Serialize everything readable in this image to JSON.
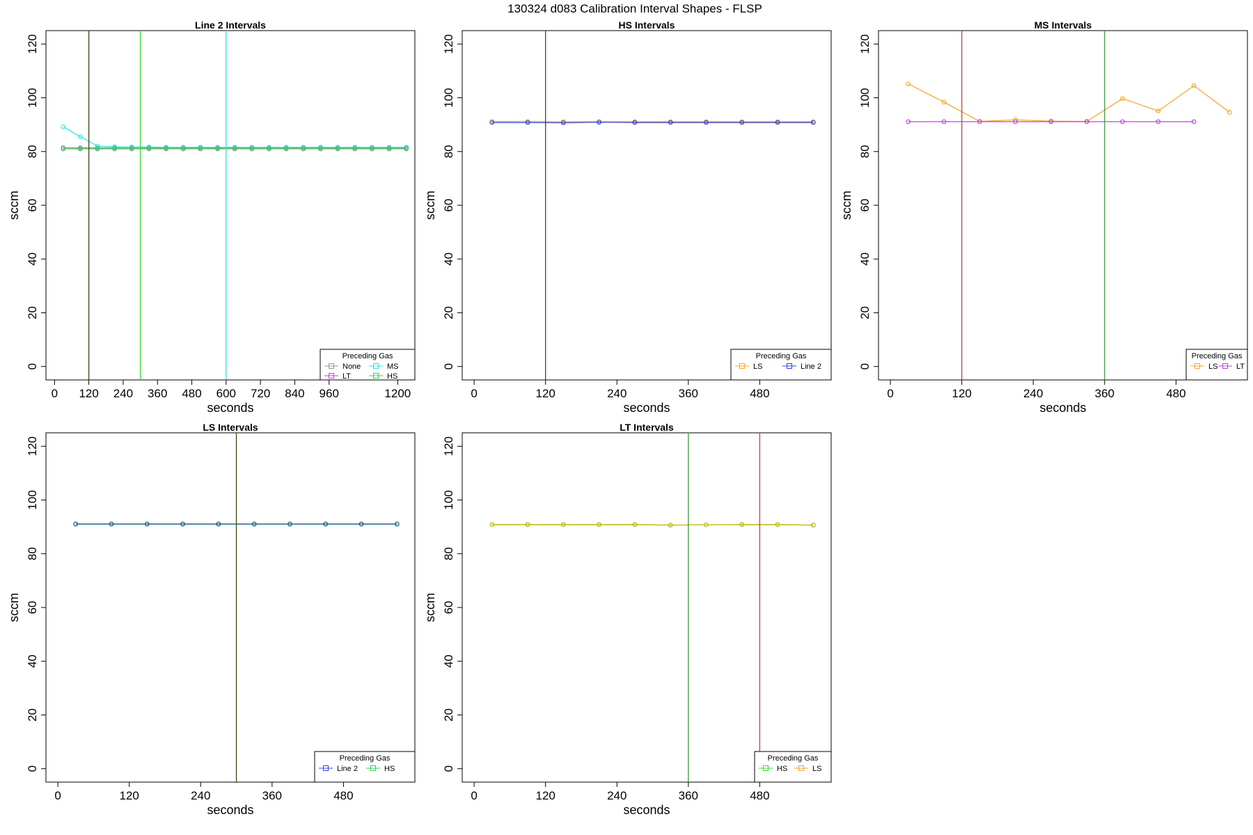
{
  "figure": {
    "title": "130324   d083   Calibration Interval Shapes - FLSP"
  },
  "chart_data": [
    {
      "type": "line",
      "title": "Line 2 Intervals",
      "xlabel": "seconds",
      "ylabel": "sccm",
      "xlim": [
        -30,
        1260
      ],
      "ylim": [
        -5,
        125
      ],
      "xticks": [
        0,
        120,
        240,
        360,
        480,
        600,
        720,
        840,
        960,
        1200
      ],
      "yticks": [
        0,
        20,
        40,
        60,
        80,
        100,
        120
      ],
      "vlines": [
        {
          "x": 120,
          "color": "#3b4a10"
        },
        {
          "x": 300,
          "color": "#33dd33"
        },
        {
          "x": 600,
          "color": "#33e0e0"
        }
      ],
      "legend": {
        "title": "Preceding Gas",
        "columns": 2,
        "entries": [
          {
            "label": "None",
            "color": "#999999"
          },
          {
            "label": "MS",
            "color": "#33e0e0"
          },
          {
            "label": "LT",
            "color": "#bb44dd"
          },
          {
            "label": "HS",
            "color": "#33cc55"
          }
        ]
      },
      "series": [
        {
          "name": "None",
          "color": "#999999",
          "x": [
            30,
            90,
            150,
            210,
            270,
            330,
            390,
            450,
            510,
            570,
            630,
            690,
            750,
            810,
            870,
            930,
            990,
            1050,
            1110,
            1170,
            1230
          ],
          "y": [
            81.5,
            81.4,
            81.4,
            81.4,
            81.4,
            81.4,
            81.4,
            81.4,
            81.4,
            81.4,
            81.4,
            81.4,
            81.4,
            81.4,
            81.4,
            81.4,
            81.4,
            81.4,
            81.4,
            81.4,
            81.4
          ]
        },
        {
          "name": "MS",
          "color": "#33e0e0",
          "x": [
            30,
            90,
            150,
            210,
            270,
            330,
            390,
            450,
            510,
            570,
            630,
            690,
            750,
            810,
            870,
            930,
            990,
            1050,
            1110,
            1170,
            1230
          ],
          "y": [
            89.2,
            85.5,
            82,
            81.8,
            81.7,
            81.7,
            81.6,
            81.6,
            81.6,
            81.6,
            81.6,
            81.6,
            81.6,
            81.6,
            81.6,
            81.6,
            81.6,
            81.6,
            81.6,
            81.6,
            81.6
          ]
        },
        {
          "name": "LT",
          "color": "#bb44dd",
          "x": [
            30,
            90,
            150,
            210,
            270,
            330,
            390,
            450,
            510,
            570,
            630,
            690,
            750,
            810,
            870,
            930,
            990,
            1050,
            1110,
            1170,
            1230
          ],
          "y": [
            81,
            81,
            81,
            81,
            81,
            81,
            81,
            81,
            81,
            81,
            81,
            81,
            81,
            81,
            81,
            81,
            81,
            81,
            81,
            81,
            81
          ]
        },
        {
          "name": "HS",
          "color": "#33cc55",
          "x": [
            30,
            90,
            150,
            210,
            270,
            330,
            390,
            450,
            510,
            570,
            630,
            690,
            750,
            810,
            870,
            930,
            990,
            1050,
            1110,
            1170,
            1230
          ],
          "y": [
            81,
            81,
            81,
            81,
            81,
            81,
            81,
            81,
            81,
            81,
            81,
            81,
            81,
            81,
            81,
            81,
            81,
            81,
            81,
            81,
            81
          ]
        }
      ]
    },
    {
      "type": "line",
      "title": "HS Intervals",
      "xlabel": "seconds",
      "ylabel": "sccm",
      "xlim": [
        -20,
        600
      ],
      "ylim": [
        -5,
        125
      ],
      "xticks": [
        0,
        120,
        240,
        360,
        480
      ],
      "yticks": [
        0,
        20,
        40,
        60,
        80,
        100,
        120
      ],
      "vlines": [
        {
          "x": 120,
          "color": "#3b4a10"
        }
      ],
      "legend": {
        "title": "Preceding Gas",
        "columns": 2,
        "entries": [
          {
            "label": "LS",
            "color": "#f5a623"
          },
          {
            "label": "Line 2",
            "color": "#3344dd"
          }
        ]
      },
      "series": [
        {
          "name": "LS",
          "color": "#f5a623",
          "x": [
            30,
            90,
            150,
            210,
            270,
            330,
            390,
            450,
            510,
            570
          ],
          "y": [
            91.2,
            91.2,
            91.1,
            91.1,
            91.1,
            91.1,
            91.1,
            91.1,
            91.1,
            91.1
          ]
        },
        {
          "name": "Line 2",
          "color": "#3344dd",
          "x": [
            30,
            90,
            150,
            210,
            270,
            330,
            390,
            450,
            510,
            570
          ],
          "y": [
            90.8,
            90.8,
            90.7,
            90.9,
            90.8,
            90.8,
            90.8,
            90.8,
            90.8,
            90.8
          ]
        }
      ]
    },
    {
      "type": "line",
      "title": "MS Intervals",
      "xlabel": "seconds",
      "ylabel": "sccm",
      "xlim": [
        -20,
        600
      ],
      "ylim": [
        -5,
        125
      ],
      "xticks": [
        0,
        120,
        240,
        360,
        480
      ],
      "yticks": [
        0,
        20,
        40,
        60,
        80,
        100,
        120
      ],
      "vlines": [
        {
          "x": 120,
          "color": "#c0404a"
        },
        {
          "x": 360,
          "color": "#3a9a3a"
        }
      ],
      "legend": {
        "title": "Preceding Gas",
        "columns": 2,
        "entries": [
          {
            "label": "LS",
            "color": "#f5a623"
          },
          {
            "label": "LT",
            "color": "#bb44dd"
          }
        ]
      },
      "series": [
        {
          "name": "LS",
          "color": "#f5a623",
          "x": [
            30,
            90,
            150,
            210,
            270,
            330,
            390,
            450,
            510,
            570
          ],
          "y": [
            105.2,
            98.4,
            91.2,
            91.8,
            91.3,
            91.2,
            99.7,
            95.1,
            104.5,
            94.6
          ]
        },
        {
          "name": "LT",
          "color": "#bb44dd",
          "x": [
            30,
            90,
            150,
            210,
            270,
            330,
            390,
            450,
            510
          ],
          "y": [
            91.1,
            91.1,
            91.1,
            91.1,
            91.1,
            91.1,
            91.1,
            91.1,
            91.1
          ]
        }
      ]
    },
    {
      "type": "line",
      "title": "LS Intervals",
      "xlabel": "seconds",
      "ylabel": "sccm",
      "xlim": [
        -20,
        600
      ],
      "ylim": [
        -5,
        125
      ],
      "xticks": [
        0,
        120,
        240,
        360,
        480
      ],
      "yticks": [
        0,
        20,
        40,
        60,
        80,
        100,
        120
      ],
      "vlines": [
        {
          "x": 300,
          "color": "#3b4a10"
        }
      ],
      "legend": {
        "title": "Preceding Gas",
        "columns": 2,
        "entries": [
          {
            "label": "Line 2",
            "color": "#3344dd"
          },
          {
            "label": "HS",
            "color": "#33cc55"
          }
        ]
      },
      "series": [
        {
          "name": "HS",
          "color": "#33cc55",
          "x": [
            30,
            90,
            150,
            210,
            270,
            330,
            390,
            450,
            510,
            570
          ],
          "y": [
            91.1,
            91.1,
            91.1,
            91.1,
            91.1,
            91.1,
            91.1,
            91.1,
            91.1,
            91.1
          ]
        },
        {
          "name": "Line 2",
          "color": "#1f5a8f",
          "x": [
            30,
            90,
            150,
            210,
            270,
            330,
            390,
            450,
            510,
            570
          ],
          "y": [
            91,
            91,
            91,
            91,
            91,
            91,
            91,
            91,
            91,
            91
          ]
        }
      ]
    },
    {
      "type": "line",
      "title": "LT Intervals",
      "xlabel": "seconds",
      "ylabel": "sccm",
      "xlim": [
        -20,
        600
      ],
      "ylim": [
        -5,
        125
      ],
      "xticks": [
        0,
        120,
        240,
        360,
        480
      ],
      "yticks": [
        0,
        20,
        40,
        60,
        80,
        100,
        120
      ],
      "vlines": [
        {
          "x": 360,
          "color": "#3a9a3a"
        },
        {
          "x": 480,
          "color": "#c0404a"
        }
      ],
      "legend": {
        "title": "Preceding Gas",
        "columns": 2,
        "entries": [
          {
            "label": "HS",
            "color": "#33dd33"
          },
          {
            "label": "LS",
            "color": "#f5a623"
          }
        ]
      },
      "series": [
        {
          "name": "HS",
          "color": "#88cc22",
          "x": [
            30,
            90,
            150,
            210,
            270,
            330,
            390,
            450,
            510,
            570
          ],
          "y": [
            90.8,
            90.8,
            90.8,
            90.8,
            90.8,
            90.6,
            90.8,
            90.8,
            90.8,
            90.6
          ]
        },
        {
          "name": "LS",
          "color": "#ccbb22",
          "x": [
            30,
            90,
            150,
            210,
            270,
            330,
            390,
            450,
            510,
            570
          ],
          "y": [
            90.9,
            90.9,
            90.9,
            90.9,
            90.9,
            90.7,
            90.8,
            90.9,
            90.9,
            90.7
          ]
        }
      ]
    }
  ]
}
